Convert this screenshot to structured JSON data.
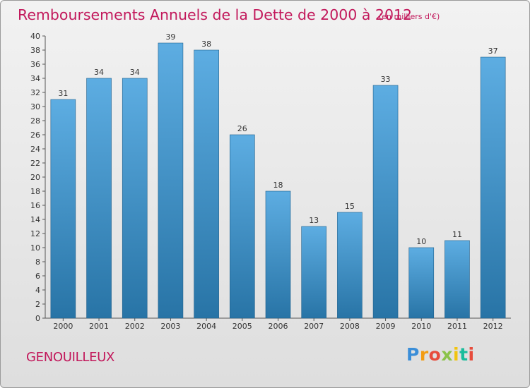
{
  "header": {
    "title": "Remboursements Annuels de la Dette de 2000 à 2012",
    "unit": "(en milliers d'€)"
  },
  "footer": {
    "commune": "GENOUILLEUX",
    "logo": "Proxiti"
  },
  "colors": {
    "title": "#c2185b",
    "bar_top": "#5dade2",
    "bar_bottom": "#2874a6"
  },
  "chart_data": {
    "type": "bar",
    "title": "Remboursements Annuels de la Dette de 2000 à 2012",
    "subtitle": "(en milliers d'€)",
    "categories": [
      "2000",
      "2001",
      "2002",
      "2003",
      "2004",
      "2005",
      "2006",
      "2007",
      "2008",
      "2009",
      "2010",
      "2011",
      "2012"
    ],
    "values": [
      31,
      34,
      34,
      39,
      38,
      26,
      18,
      13,
      15,
      33,
      10,
      11,
      37
    ],
    "ylim": [
      0,
      40
    ],
    "ytick_step": 2,
    "grid": false,
    "xlabel": "",
    "ylabel": ""
  }
}
